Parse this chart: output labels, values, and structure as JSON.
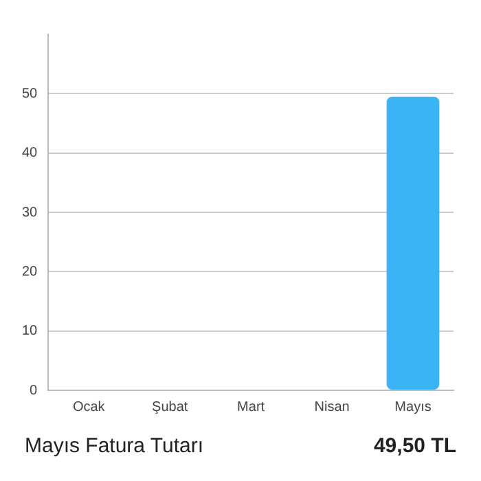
{
  "chart_data": {
    "type": "bar",
    "categories": [
      "Ocak",
      "Şubat",
      "Mart",
      "Nisan",
      "Mayıs"
    ],
    "values": [
      0,
      0,
      0,
      0,
      49.5
    ],
    "color": "#3bb4f6",
    "ylim": [
      0,
      60
    ],
    "yticks": [
      0,
      10,
      20,
      30,
      40,
      50
    ],
    "grid": "y",
    "legend": false,
    "annotations": [
      "Mayıs Fatura Tutarı",
      "49,50 TL"
    ]
  }
}
